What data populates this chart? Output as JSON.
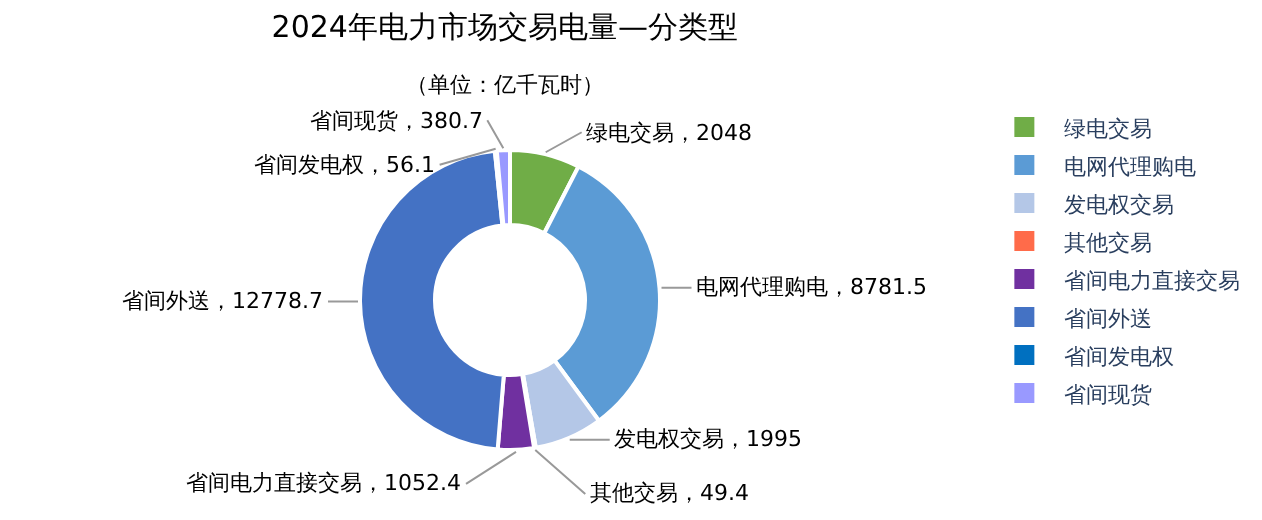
{
  "chart_data": {
    "type": "donut",
    "title": "2024年电力市场交易电量—分类型",
    "subtitle": "（单位：亿千瓦时）",
    "categories": [
      "绿电交易",
      "电网代理购电",
      "发电权交易",
      "其他交易",
      "省间电力直接交易",
      "省间外送",
      "省间发电权",
      "省间现货"
    ],
    "values": [
      2048,
      8781.5,
      1995,
      49.4,
      1052.4,
      12778.7,
      56.1,
      380.7
    ],
    "value_labels": [
      "绿电交易，2048",
      "电网代理购电，8781.5",
      "发电权交易，1995",
      "其他交易，49.4",
      "省间电力直接交易，1052.4",
      "省间外送，12778.7",
      "省间发电权，56.1",
      "省间现货，380.7"
    ],
    "colors": [
      "#70ad47",
      "#5b9bd5",
      "#b4c7e7",
      "#ff6b4a",
      "#7030a0",
      "#4472c4",
      "#0070c0",
      "#9999ff"
    ],
    "legend": "right"
  }
}
